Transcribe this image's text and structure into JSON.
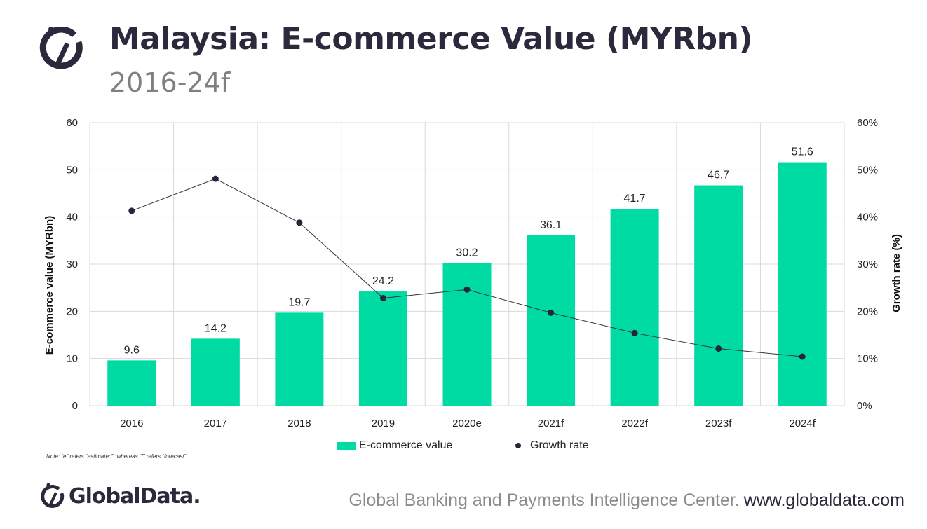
{
  "header": {
    "title": "Malaysia: E-commerce Value (MYRbn)",
    "subtitle": "2016-24f"
  },
  "colors": {
    "bar": "#00dba3",
    "line": "#333333",
    "marker": "#262638",
    "brand_dark": "#2b2a3d",
    "grid": "#d9d9d9"
  },
  "chart_data": {
    "type": "bar",
    "categories": [
      "2016",
      "2017",
      "2018",
      "2019",
      "2020e",
      "2021f",
      "2022f",
      "2023f",
      "2024f"
    ],
    "series": [
      {
        "name": "E-commerce value",
        "type": "bar",
        "axis": "left",
        "values": [
          9.6,
          14.2,
          19.7,
          24.2,
          30.2,
          36.1,
          41.7,
          46.7,
          51.6
        ],
        "labels": [
          "9.6",
          "14.2",
          "19.7",
          "24.2",
          "30.2",
          "36.1",
          "41.7",
          "46.7",
          "51.6"
        ]
      },
      {
        "name": "Growth rate",
        "type": "line",
        "axis": "right",
        "values": [
          41.3,
          48.1,
          38.8,
          22.8,
          24.6,
          19.7,
          15.4,
          12.1,
          10.4
        ]
      }
    ],
    "ylabel": "E-commerce value (MYRbn)",
    "ylim": [
      0,
      60
    ],
    "yticks": [
      "0",
      "10",
      "20",
      "30",
      "40",
      "50",
      "60"
    ],
    "y2label": "Growth rate (%)",
    "y2lim": [
      0,
      60
    ],
    "y2ticks": [
      "0%",
      "10%",
      "20%",
      "30%",
      "40%",
      "50%",
      "60%"
    ],
    "grid": true,
    "legend": "bottom"
  },
  "legend": {
    "bar_label": "E-commerce value",
    "line_label": "Growth rate"
  },
  "note": "Note: “e” refers “estimated”, whereas “f” refers “forecast”",
  "footer": {
    "brand": "GlobalData.",
    "center": "Global Banking and Payments Intelligence Center.",
    "url": "www.globaldata.com"
  }
}
